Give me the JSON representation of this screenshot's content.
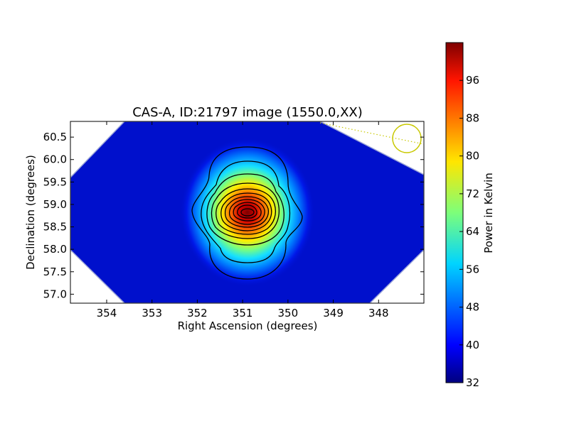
{
  "chart_data": {
    "type": "heatmap",
    "title": "CAS-A, ID:21797 image (1550.0,XX)",
    "xlabel": "Right Ascension (degrees)",
    "ylabel": "Declination (degrees)",
    "x_ticks": [
      "354",
      "353",
      "352",
      "351",
      "350",
      "349",
      "348"
    ],
    "y_ticks": [
      "60.5",
      "60.0",
      "59.5",
      "59.0",
      "58.5",
      "58.0",
      "57.5",
      "57.0"
    ],
    "x_range": [
      354.8,
      347.0
    ],
    "y_range": [
      56.8,
      60.85
    ],
    "source_peak": {
      "ra": 350.85,
      "dec": 58.82,
      "power": 102
    },
    "background_power": 34,
    "colormap": "jet",
    "colorbar": {
      "label": "Power in Kelvin",
      "ticks": [
        "32",
        "40",
        "48",
        "56",
        "64",
        "72",
        "80",
        "88",
        "96"
      ],
      "range": [
        32,
        104
      ]
    },
    "contours": true,
    "beam_marker_color": "#c8c800"
  }
}
